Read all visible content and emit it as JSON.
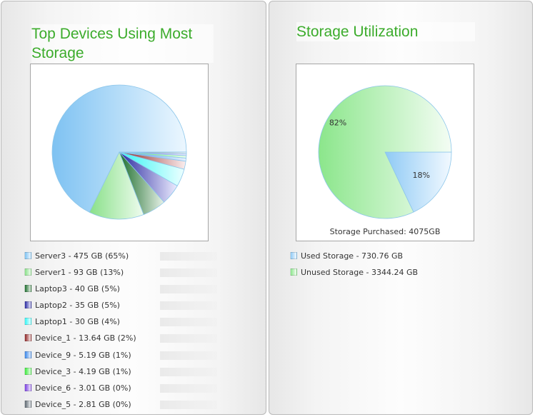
{
  "top_devices": {
    "title": "Top Devices Using Most Storage",
    "legend": [
      {
        "label": "Server3 - 475 GB (65%)",
        "value": 475,
        "color": "#7ec2f2",
        "light": "#ecf7ff"
      },
      {
        "label": "Server1 - 93 GB (13%)",
        "value": 93,
        "color": "#89e089",
        "light": "#effcef"
      },
      {
        "label": "Laptop3 - 40 GB (5%)",
        "value": 40,
        "color": "#1e6e2e",
        "light": "#e8f2e8"
      },
      {
        "label": "Laptop2 - 35 GB (5%)",
        "value": 35,
        "color": "#2a2aa0",
        "light": "#ececff"
      },
      {
        "label": "Laptop1 - 30 GB (4%)",
        "value": 30,
        "color": "#35f5f5",
        "light": "#ecffff"
      },
      {
        "label": "Device_1 - 13.64 GB (2%)",
        "value": 13.64,
        "color": "#8e2424",
        "light": "#fbeeee"
      },
      {
        "label": "Device_9 - 5.19 GB (1%)",
        "value": 5.19,
        "color": "#3a86e8",
        "light": "#e6f1ff"
      },
      {
        "label": "Device_3 - 4.19 GB (1%)",
        "value": 4.19,
        "color": "#3ce83c",
        "light": "#e9ffe9"
      },
      {
        "label": "Device_6 - 3.01 GB (0%)",
        "value": 3.01,
        "color": "#7a3ee0",
        "light": "#f2ebff"
      },
      {
        "label": "Device_5 - 2.81 GB (0%)",
        "value": 2.81,
        "color": "#5e6870",
        "light": "#eef1f3"
      }
    ]
  },
  "storage_utilization": {
    "title": "Storage Utilization",
    "caption": "Storage Purchased: 4075GB",
    "slices": [
      {
        "label": "Used Storage - 730.76 GB",
        "pct_label": "18%",
        "value": 730.76,
        "color": "#8fcaf5",
        "light": "#f2f9ff"
      },
      {
        "label": "Unused Storage - 3344.24 GB",
        "pct_label": "82%",
        "value": 3344.24,
        "color": "#8be68b",
        "light": "#f4fdf4"
      }
    ]
  },
  "chart_data": [
    {
      "type": "pie",
      "title": "Top Devices Using Most Storage",
      "categories": [
        "Server3",
        "Server1",
        "Laptop3",
        "Laptop2",
        "Laptop1",
        "Device_1",
        "Device_9",
        "Device_3",
        "Device_6",
        "Device_5"
      ],
      "values": [
        475,
        93,
        40,
        35,
        30,
        13.64,
        5.19,
        4.19,
        3.01,
        2.81
      ],
      "legend": "bottom"
    },
    {
      "type": "pie",
      "title": "Storage Utilization",
      "categories": [
        "Used Storage",
        "Unused Storage"
      ],
      "values": [
        730.76,
        3344.24
      ],
      "data_labels": [
        "18%",
        "82%"
      ],
      "legend": "bottom"
    }
  ]
}
